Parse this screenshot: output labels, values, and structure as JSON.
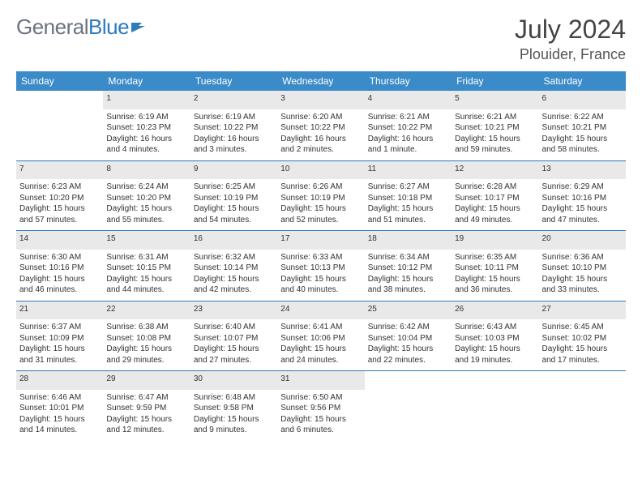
{
  "branding": {
    "word1": "General",
    "word2": "Blue",
    "word1_color": "#6b7280",
    "word2_color": "#2b7bbd",
    "icon_color": "#2b7bbd"
  },
  "title": "July 2024",
  "location": "Plouider, France",
  "colors": {
    "header_bg": "#3b8bc9",
    "header_text": "#ffffff",
    "daynum_bg": "#e9e9e9",
    "daynum_text": "#555555",
    "divider": "#2b7bbd",
    "body_text": "#333333",
    "background": "#ffffff"
  },
  "weekdays": [
    "Sunday",
    "Monday",
    "Tuesday",
    "Wednesday",
    "Thursday",
    "Friday",
    "Saturday"
  ],
  "weeks": [
    [
      null,
      {
        "n": "1",
        "sr": "Sunrise: 6:19 AM",
        "ss": "Sunset: 10:23 PM",
        "dl": "Daylight: 16 hours and 4 minutes."
      },
      {
        "n": "2",
        "sr": "Sunrise: 6:19 AM",
        "ss": "Sunset: 10:22 PM",
        "dl": "Daylight: 16 hours and 3 minutes."
      },
      {
        "n": "3",
        "sr": "Sunrise: 6:20 AM",
        "ss": "Sunset: 10:22 PM",
        "dl": "Daylight: 16 hours and 2 minutes."
      },
      {
        "n": "4",
        "sr": "Sunrise: 6:21 AM",
        "ss": "Sunset: 10:22 PM",
        "dl": "Daylight: 16 hours and 1 minute."
      },
      {
        "n": "5",
        "sr": "Sunrise: 6:21 AM",
        "ss": "Sunset: 10:21 PM",
        "dl": "Daylight: 15 hours and 59 minutes."
      },
      {
        "n": "6",
        "sr": "Sunrise: 6:22 AM",
        "ss": "Sunset: 10:21 PM",
        "dl": "Daylight: 15 hours and 58 minutes."
      }
    ],
    [
      {
        "n": "7",
        "sr": "Sunrise: 6:23 AM",
        "ss": "Sunset: 10:20 PM",
        "dl": "Daylight: 15 hours and 57 minutes."
      },
      {
        "n": "8",
        "sr": "Sunrise: 6:24 AM",
        "ss": "Sunset: 10:20 PM",
        "dl": "Daylight: 15 hours and 55 minutes."
      },
      {
        "n": "9",
        "sr": "Sunrise: 6:25 AM",
        "ss": "Sunset: 10:19 PM",
        "dl": "Daylight: 15 hours and 54 minutes."
      },
      {
        "n": "10",
        "sr": "Sunrise: 6:26 AM",
        "ss": "Sunset: 10:19 PM",
        "dl": "Daylight: 15 hours and 52 minutes."
      },
      {
        "n": "11",
        "sr": "Sunrise: 6:27 AM",
        "ss": "Sunset: 10:18 PM",
        "dl": "Daylight: 15 hours and 51 minutes."
      },
      {
        "n": "12",
        "sr": "Sunrise: 6:28 AM",
        "ss": "Sunset: 10:17 PM",
        "dl": "Daylight: 15 hours and 49 minutes."
      },
      {
        "n": "13",
        "sr": "Sunrise: 6:29 AM",
        "ss": "Sunset: 10:16 PM",
        "dl": "Daylight: 15 hours and 47 minutes."
      }
    ],
    [
      {
        "n": "14",
        "sr": "Sunrise: 6:30 AM",
        "ss": "Sunset: 10:16 PM",
        "dl": "Daylight: 15 hours and 46 minutes."
      },
      {
        "n": "15",
        "sr": "Sunrise: 6:31 AM",
        "ss": "Sunset: 10:15 PM",
        "dl": "Daylight: 15 hours and 44 minutes."
      },
      {
        "n": "16",
        "sr": "Sunrise: 6:32 AM",
        "ss": "Sunset: 10:14 PM",
        "dl": "Daylight: 15 hours and 42 minutes."
      },
      {
        "n": "17",
        "sr": "Sunrise: 6:33 AM",
        "ss": "Sunset: 10:13 PM",
        "dl": "Daylight: 15 hours and 40 minutes."
      },
      {
        "n": "18",
        "sr": "Sunrise: 6:34 AM",
        "ss": "Sunset: 10:12 PM",
        "dl": "Daylight: 15 hours and 38 minutes."
      },
      {
        "n": "19",
        "sr": "Sunrise: 6:35 AM",
        "ss": "Sunset: 10:11 PM",
        "dl": "Daylight: 15 hours and 36 minutes."
      },
      {
        "n": "20",
        "sr": "Sunrise: 6:36 AM",
        "ss": "Sunset: 10:10 PM",
        "dl": "Daylight: 15 hours and 33 minutes."
      }
    ],
    [
      {
        "n": "21",
        "sr": "Sunrise: 6:37 AM",
        "ss": "Sunset: 10:09 PM",
        "dl": "Daylight: 15 hours and 31 minutes."
      },
      {
        "n": "22",
        "sr": "Sunrise: 6:38 AM",
        "ss": "Sunset: 10:08 PM",
        "dl": "Daylight: 15 hours and 29 minutes."
      },
      {
        "n": "23",
        "sr": "Sunrise: 6:40 AM",
        "ss": "Sunset: 10:07 PM",
        "dl": "Daylight: 15 hours and 27 minutes."
      },
      {
        "n": "24",
        "sr": "Sunrise: 6:41 AM",
        "ss": "Sunset: 10:06 PM",
        "dl": "Daylight: 15 hours and 24 minutes."
      },
      {
        "n": "25",
        "sr": "Sunrise: 6:42 AM",
        "ss": "Sunset: 10:04 PM",
        "dl": "Daylight: 15 hours and 22 minutes."
      },
      {
        "n": "26",
        "sr": "Sunrise: 6:43 AM",
        "ss": "Sunset: 10:03 PM",
        "dl": "Daylight: 15 hours and 19 minutes."
      },
      {
        "n": "27",
        "sr": "Sunrise: 6:45 AM",
        "ss": "Sunset: 10:02 PM",
        "dl": "Daylight: 15 hours and 17 minutes."
      }
    ],
    [
      {
        "n": "28",
        "sr": "Sunrise: 6:46 AM",
        "ss": "Sunset: 10:01 PM",
        "dl": "Daylight: 15 hours and 14 minutes."
      },
      {
        "n": "29",
        "sr": "Sunrise: 6:47 AM",
        "ss": "Sunset: 9:59 PM",
        "dl": "Daylight: 15 hours and 12 minutes."
      },
      {
        "n": "30",
        "sr": "Sunrise: 6:48 AM",
        "ss": "Sunset: 9:58 PM",
        "dl": "Daylight: 15 hours and 9 minutes."
      },
      {
        "n": "31",
        "sr": "Sunrise: 6:50 AM",
        "ss": "Sunset: 9:56 PM",
        "dl": "Daylight: 15 hours and 6 minutes."
      },
      null,
      null,
      null
    ]
  ]
}
